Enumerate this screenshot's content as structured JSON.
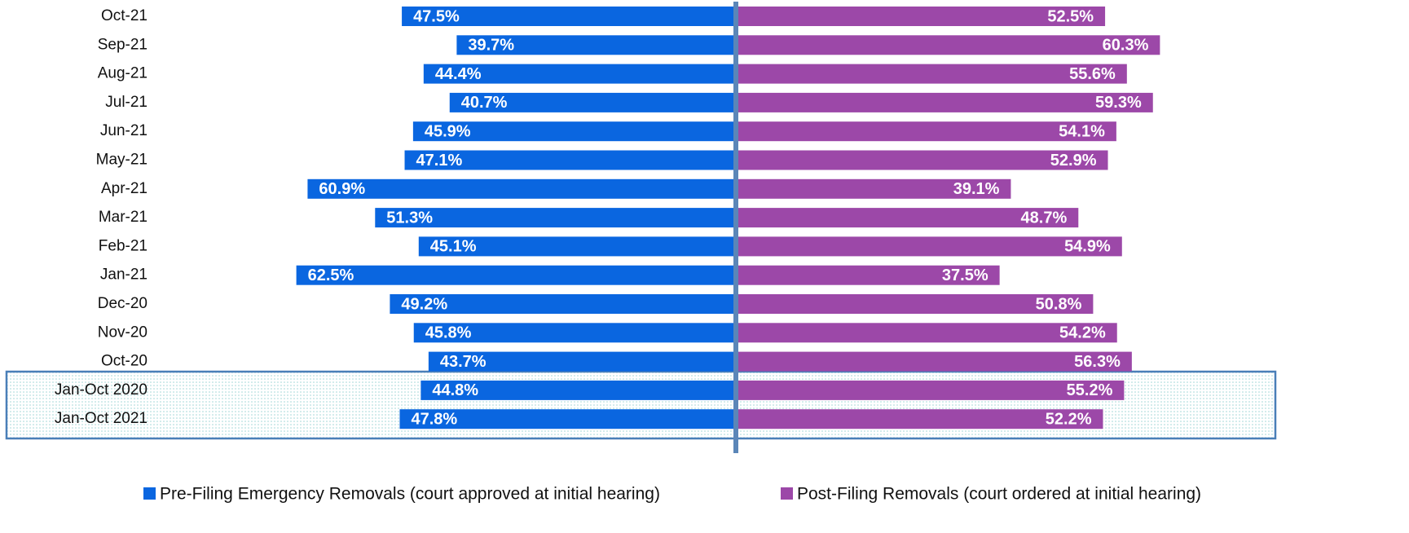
{
  "chart_data": {
    "type": "diverging-bar",
    "categories": [
      "Oct-21",
      "Sep-21",
      "Aug-21",
      "Jul-21",
      "Jun-21",
      "May-21",
      "Apr-21",
      "Mar-21",
      "Feb-21",
      "Jan-21",
      "Dec-20",
      "Nov-20",
      "Oct-20",
      "Jan-Oct 2020",
      "Jan-Oct 2021"
    ],
    "series": [
      {
        "name": "Pre-Filing Emergency Removals (court approved at initial hearing)",
        "color": "#0a66e0",
        "values": [
          47.5,
          39.7,
          44.4,
          40.7,
          45.9,
          47.1,
          60.9,
          51.3,
          45.1,
          62.5,
          49.2,
          45.8,
          43.7,
          44.8,
          47.8
        ],
        "value_labels": [
          "47.5%",
          "39.7%",
          "44.4%",
          "40.7%",
          "45.9%",
          "47.1%",
          "60.9%",
          "51.3%",
          "45.1%",
          "62.5%",
          "49.2%",
          "45.8%",
          "43.7%",
          "44.8%",
          "47.8%"
        ]
      },
      {
        "name": "Post-Filing Removals (court ordered at initial hearing)",
        "color": "#9c48a8",
        "values": [
          52.5,
          60.3,
          55.6,
          59.3,
          54.1,
          52.9,
          39.1,
          48.7,
          54.9,
          37.5,
          50.8,
          54.2,
          56.3,
          55.2,
          52.2
        ],
        "value_labels": [
          "52.5%",
          "60.3%",
          "55.6%",
          "59.3%",
          "54.1%",
          "52.9%",
          "39.1%",
          "48.7%",
          "54.9%",
          "37.5%",
          "50.8%",
          "54.2%",
          "56.3%",
          "55.2%",
          "52.2%"
        ]
      }
    ]
  }
}
